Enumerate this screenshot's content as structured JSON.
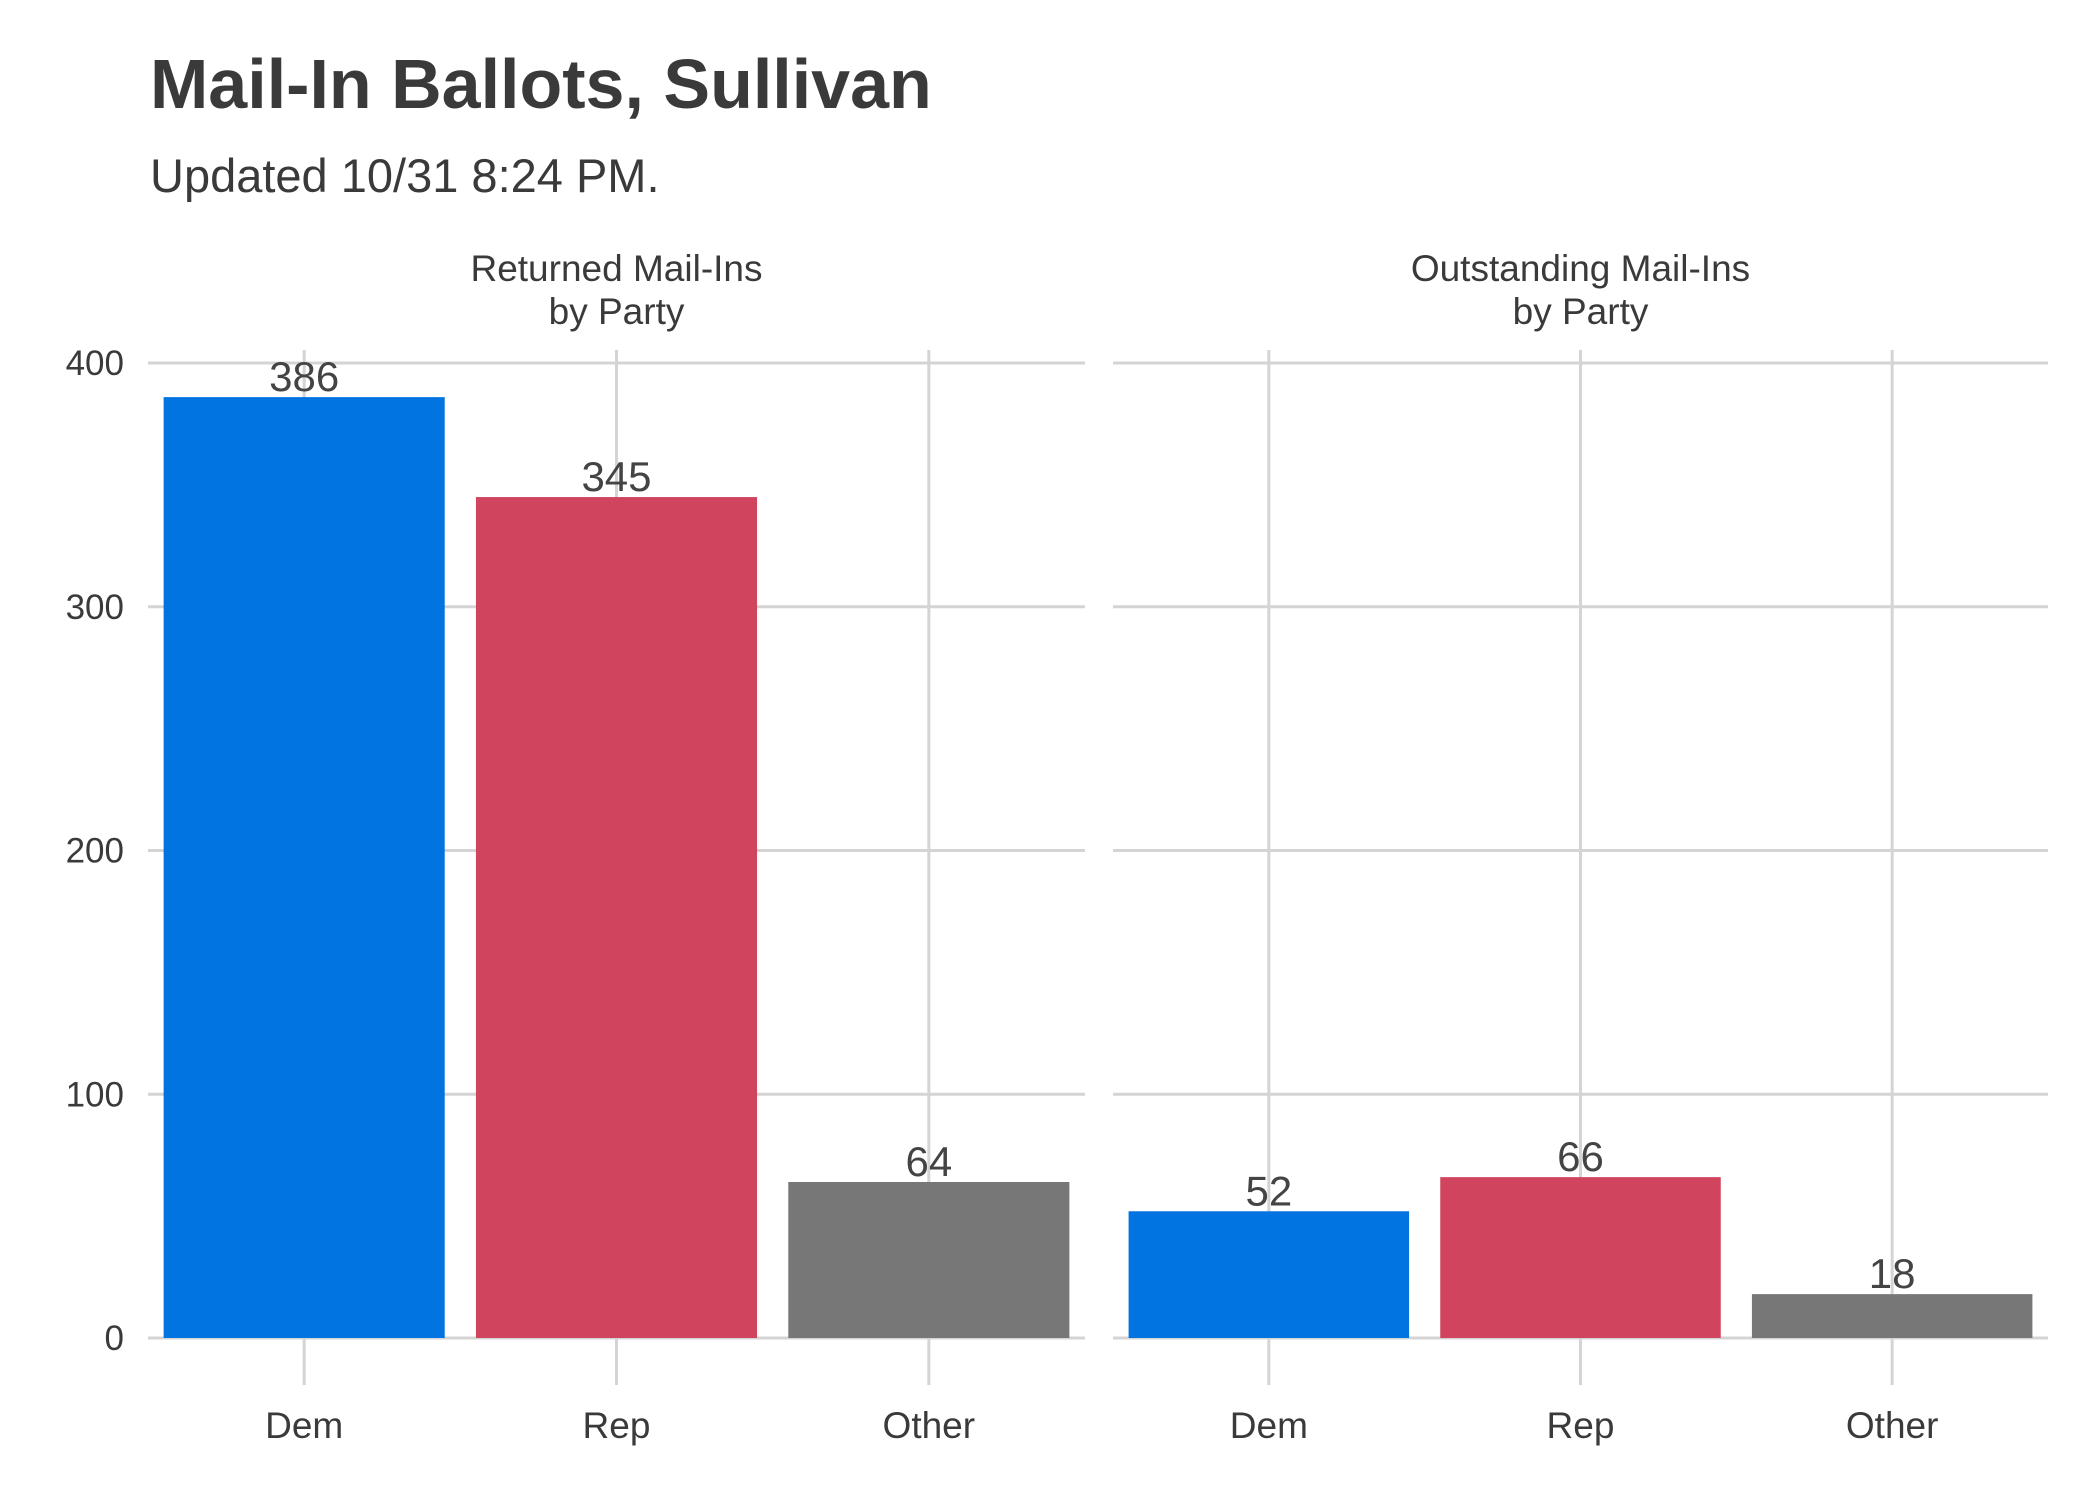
{
  "chart_data": {
    "type": "bar",
    "title": "Mail-In Ballots, Sullivan",
    "subtitle": "Updated 10/31 8:24 PM.",
    "ylim": [
      0,
      400
    ],
    "yticks": [
      0,
      100,
      200,
      300,
      400
    ],
    "categories": [
      "Dem",
      "Rep",
      "Other"
    ],
    "colors": {
      "Dem": "#0174E1",
      "Rep": "#D0445E",
      "Other": "#777777"
    },
    "panels": [
      {
        "title_lines": [
          "Returned Mail-Ins",
          "by Party"
        ],
        "values": [
          386,
          345,
          64
        ]
      },
      {
        "title_lines": [
          "Outstanding Mail-Ins",
          "by Party"
        ],
        "values": [
          52,
          66,
          18
        ]
      }
    ]
  }
}
